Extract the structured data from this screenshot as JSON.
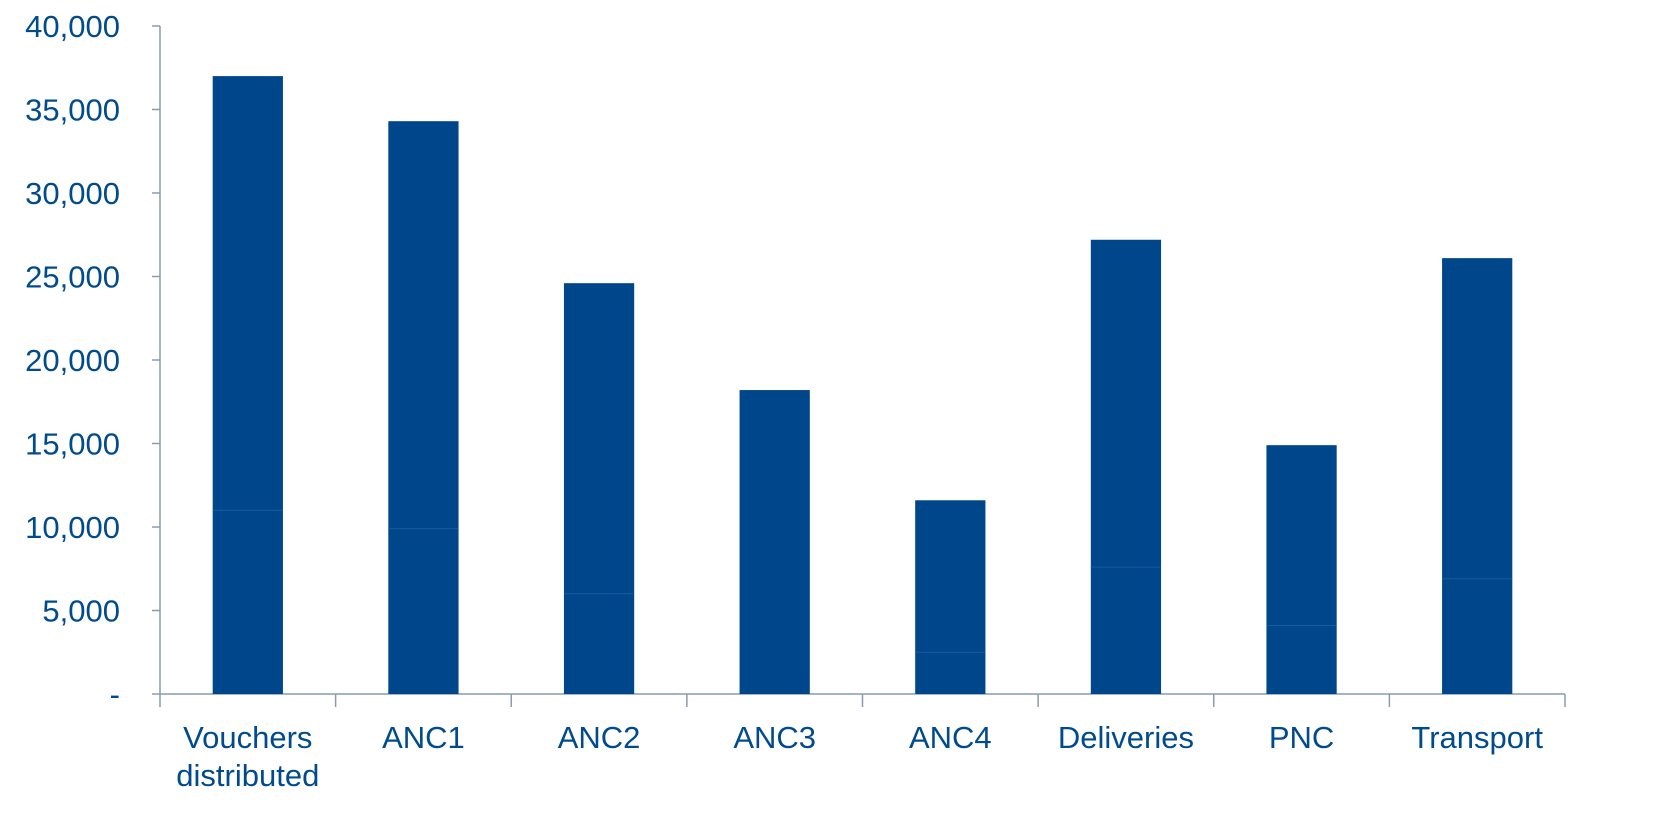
{
  "chart_data": {
    "type": "bar",
    "stacked": true,
    "categories": [
      [
        "Vouchers",
        "distributed"
      ],
      [
        "ANC1"
      ],
      [
        "ANC2"
      ],
      [
        "ANC3"
      ],
      [
        "ANC4"
      ],
      [
        "Deliveries"
      ],
      [
        "PNC"
      ],
      [
        "Transport"
      ]
    ],
    "series": [
      {
        "values": [
          11000,
          9900,
          6000,
          0,
          2500,
          7600,
          4100,
          6900
        ]
      },
      {
        "values": [
          26000,
          24400,
          18600,
          18200,
          9100,
          19600,
          10800,
          19200
        ]
      }
    ],
    "totals": [
      37000,
      34300,
      24600,
      18200,
      11600,
      27200,
      14900,
      26100
    ],
    "ylim": [
      0,
      40000
    ],
    "yticks": [
      0,
      5000,
      10000,
      15000,
      20000,
      25000,
      30000,
      35000,
      40000
    ],
    "ytick_labels": [
      "-",
      "5,000",
      "10,000",
      "15,000",
      "20,000",
      "25,000",
      "30,000",
      "35,000",
      "40,000"
    ],
    "bar_color": "#00468b",
    "text_color": "#004b8d",
    "axis_color": "#8a9bb0",
    "grid": false,
    "legend": "none"
  }
}
